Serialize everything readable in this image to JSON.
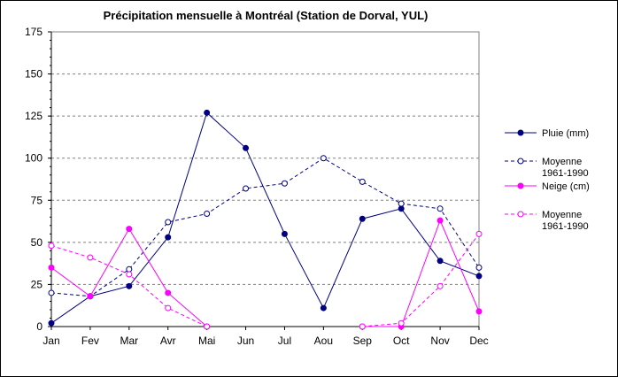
{
  "chart_data": {
    "type": "line",
    "title": "Précipitation mensuelle à Montréal (Station de Dorval, YUL)",
    "categories": [
      "Jan",
      "Fev",
      "Mar",
      "Avr",
      "Mai",
      "Jun",
      "Jul",
      "Aou",
      "Sep",
      "Oct",
      "Nov",
      "Dec"
    ],
    "ylim": [
      0,
      175
    ],
    "yticks": [
      0,
      25,
      50,
      75,
      100,
      125,
      150,
      175
    ],
    "grid": true,
    "legend_position": "right",
    "series": [
      {
        "name": "Pluie (mm)",
        "color": "#000080",
        "style": "solid",
        "marker": "filled",
        "values": [
          2,
          18,
          24,
          53,
          127,
          106,
          55,
          11,
          64,
          70,
          39,
          30
        ]
      },
      {
        "name": "Moyenne 1961-1990",
        "color": "#000080",
        "style": "dashed",
        "marker": "hollow",
        "values": [
          20,
          18,
          34,
          62,
          67,
          82,
          85,
          100,
          86,
          73,
          70,
          35
        ]
      },
      {
        "name": "Neige (cm)",
        "color": "#ff00ff",
        "style": "solid",
        "marker": "filled",
        "values": [
          35,
          18,
          58,
          20,
          0,
          null,
          null,
          null,
          0,
          0,
          63,
          9
        ]
      },
      {
        "name": "Moyenne 1961-1990",
        "color": "#ff00ff",
        "style": "dashed",
        "marker": "hollow",
        "values": [
          48,
          41,
          31,
          11,
          0,
          null,
          null,
          null,
          0,
          2,
          24,
          55
        ]
      }
    ]
  }
}
